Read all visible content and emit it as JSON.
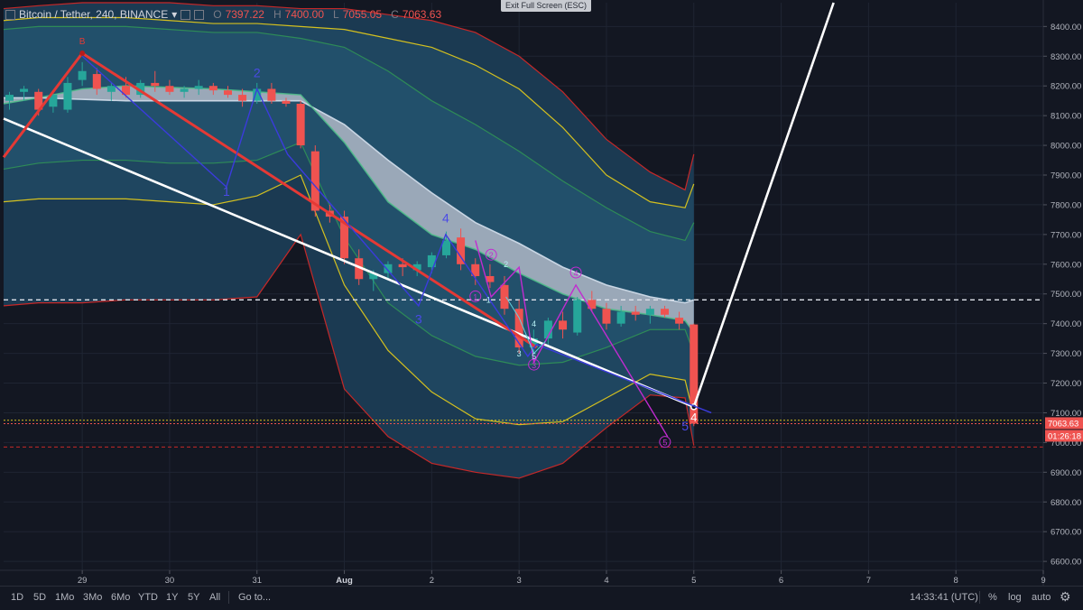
{
  "header": {
    "symbol": "Bitcoin / Tether, 240, BINANCE",
    "o_label": "O",
    "o": "7397.22",
    "h_label": "H",
    "h": "7400.00",
    "l_label": "L",
    "l": "7055.05",
    "c_label": "C",
    "c": "7063.63"
  },
  "fullscreen_hint": "Exit Full Screen (ESC)",
  "toolbar": {
    "ranges": [
      "1D",
      "5D",
      "1Mo",
      "3Mo",
      "6Mo",
      "YTD",
      "1Y",
      "5Y",
      "All"
    ],
    "goto": "Go to...",
    "clock": "14:33:41 (UTC)",
    "percent": "%",
    "log": "log",
    "auto": "auto"
  },
  "colors": {
    "background": "#131722",
    "up": "#26a69a",
    "down": "#ef5350",
    "bb_outer": "#c62828",
    "bb_mid": "#d4c01f",
    "bb_inner": "#2e8b57",
    "cloud": "#9aa8b8",
    "elliott_major": "#e53935",
    "elliott_minor": "#3b3bdc",
    "elliott_sub": "#c22bd1",
    "trend": "#ffffff"
  },
  "chart_data": {
    "type": "candlestick",
    "title": "Bitcoin / Tether, 240, BINANCE",
    "y_ticks": [
      6600,
      6700,
      6800,
      6900,
      7000,
      7100,
      7200,
      7300,
      7400,
      7500,
      7600,
      7700,
      7800,
      7900,
      8000,
      8100,
      8200,
      8300,
      8400
    ],
    "y_tick_labels": [
      "6600.00",
      "6700.00",
      "6800.00",
      "6900.00",
      "7000.00",
      "7100.00",
      "7200.00",
      "7300.00",
      "7400.00",
      "7500.00",
      "7600.00",
      "7700.00",
      "7800.00",
      "7900.00",
      "8000.00",
      "8100.00",
      "8200.00",
      "8300.00",
      "8400.00"
    ],
    "ylim": [
      6570,
      8480
    ],
    "x_tick_labels": [
      "29",
      "30",
      "31",
      "Aug",
      "2",
      "3",
      "4",
      "5",
      "6",
      "7",
      "8",
      "9"
    ],
    "x_ticks_day": [
      0,
      1,
      2,
      3,
      4,
      5,
      6,
      7,
      8,
      9,
      10,
      11
    ],
    "xlim_day": [
      -0.9,
      11.0
    ],
    "price_label": "7063.63",
    "countdown_label": "01:26:18",
    "last_price": 7063.63,
    "dashed_level_white": 7480,
    "dotted_level_yellow": 7075,
    "dashed_level_red": 6985,
    "candles_x_day_ohlc": [
      [
        -0.833,
        8150,
        8180,
        8120,
        8170
      ],
      [
        -0.667,
        8180,
        8200,
        8150,
        8190
      ],
      [
        -0.5,
        8180,
        8190,
        8100,
        8120
      ],
      [
        -0.333,
        8130,
        8180,
        8110,
        8170
      ],
      [
        -0.167,
        8120,
        8230,
        8110,
        8210
      ],
      [
        0.0,
        8220,
        8280,
        8200,
        8250
      ],
      [
        0.167,
        8240,
        8260,
        8170,
        8190
      ],
      [
        0.333,
        8180,
        8210,
        8150,
        8200
      ],
      [
        0.5,
        8200,
        8230,
        8160,
        8170
      ],
      [
        0.667,
        8170,
        8220,
        8160,
        8210
      ],
      [
        0.833,
        8210,
        8250,
        8180,
        8200
      ],
      [
        1.0,
        8200,
        8220,
        8170,
        8180
      ],
      [
        1.167,
        8180,
        8200,
        8160,
        8190
      ],
      [
        1.333,
        8190,
        8220,
        8170,
        8200
      ],
      [
        1.5,
        8200,
        8210,
        8170,
        8185
      ],
      [
        1.667,
        8185,
        8200,
        8160,
        8170
      ],
      [
        1.833,
        8170,
        8190,
        8130,
        8150
      ],
      [
        2.0,
        8150,
        8210,
        8140,
        8190
      ],
      [
        2.167,
        8190,
        8210,
        8140,
        8150
      ],
      [
        2.333,
        8150,
        8160,
        8130,
        8140
      ],
      [
        2.5,
        8140,
        8150,
        7990,
        8000
      ],
      [
        2.667,
        7980,
        8000,
        7760,
        7780
      ],
      [
        2.833,
        7780,
        7800,
        7740,
        7760
      ],
      [
        3.0,
        7760,
        7780,
        7600,
        7620
      ],
      [
        3.167,
        7620,
        7650,
        7530,
        7550
      ],
      [
        3.333,
        7550,
        7580,
        7510,
        7570
      ],
      [
        3.5,
        7570,
        7610,
        7550,
        7600
      ],
      [
        3.667,
        7600,
        7620,
        7560,
        7590
      ],
      [
        3.833,
        7580,
        7610,
        7560,
        7600
      ],
      [
        4.0,
        7590,
        7640,
        7570,
        7630
      ],
      [
        4.167,
        7630,
        7710,
        7620,
        7680
      ],
      [
        4.333,
        7690,
        7720,
        7580,
        7600
      ],
      [
        4.5,
        7600,
        7620,
        7530,
        7560
      ],
      [
        4.667,
        7560,
        7600,
        7520,
        7540
      ],
      [
        4.833,
        7530,
        7560,
        7430,
        7450
      ],
      [
        5.0,
        7450,
        7480,
        7300,
        7320
      ],
      [
        5.167,
        7320,
        7380,
        7300,
        7350
      ],
      [
        5.333,
        7350,
        7420,
        7330,
        7410
      ],
      [
        5.5,
        7410,
        7440,
        7350,
        7380
      ],
      [
        5.667,
        7370,
        7490,
        7360,
        7480
      ],
      [
        5.833,
        7480,
        7510,
        7440,
        7450
      ],
      [
        6.0,
        7450,
        7470,
        7380,
        7400
      ],
      [
        6.167,
        7400,
        7460,
        7390,
        7440
      ],
      [
        6.333,
        7440,
        7460,
        7410,
        7430
      ],
      [
        6.5,
        7430,
        7460,
        7400,
        7450
      ],
      [
        6.667,
        7450,
        7460,
        7420,
        7430
      ],
      [
        6.833,
        7420,
        7440,
        7380,
        7400
      ],
      [
        7.0,
        7397.22,
        7400,
        7055.05,
        7063.63
      ]
    ],
    "bands": {
      "x_day": [
        -0.9,
        -0.5,
        0.0,
        0.5,
        1.0,
        1.5,
        2.0,
        2.5,
        3.0,
        3.5,
        4.0,
        4.5,
        5.0,
        5.5,
        6.0,
        6.5,
        6.9,
        7.0
      ],
      "outer_upper": [
        8460,
        8470,
        8480,
        8480,
        8480,
        8470,
        8470,
        8460,
        8460,
        8440,
        8420,
        8380,
        8300,
        8180,
        8020,
        7910,
        7850,
        7970
      ],
      "outer_lower": [
        7460,
        7470,
        7470,
        7480,
        7480,
        7480,
        7490,
        7700,
        7180,
        7020,
        6930,
        6900,
        6880,
        6930,
        7050,
        7160,
        7150,
        6990
      ],
      "mid_upper": [
        8420,
        8430,
        8430,
        8430,
        8420,
        8410,
        8410,
        8400,
        8390,
        8360,
        8330,
        8270,
        8190,
        8060,
        7900,
        7810,
        7790,
        7870
      ],
      "mid_lower": [
        7810,
        7820,
        7820,
        7820,
        7810,
        7800,
        7830,
        7900,
        7530,
        7310,
        7170,
        7080,
        7060,
        7070,
        7150,
        7230,
        7210,
        7090
      ],
      "inner_upper": [
        8390,
        8400,
        8400,
        8400,
        8390,
        8380,
        8380,
        8360,
        8330,
        8250,
        8150,
        8070,
        7980,
        7880,
        7790,
        7710,
        7680,
        7740
      ],
      "inner_lower": [
        7920,
        7940,
        7950,
        7950,
        7940,
        7940,
        7950,
        8010,
        7690,
        7470,
        7360,
        7290,
        7260,
        7270,
        7320,
        7380,
        7380,
        7300
      ],
      "ma_slow": [
        8160,
        8160,
        8155,
        8150,
        8150,
        8150,
        8150,
        8150,
        8070,
        7950,
        7840,
        7740,
        7670,
        7590,
        7530,
        7490,
        7470,
        7480
      ],
      "ma_fast": [
        8140,
        8160,
        8190,
        8200,
        8195,
        8190,
        8180,
        8170,
        8010,
        7810,
        7700,
        7650,
        7570,
        7500,
        7450,
        7430,
        7410,
        7370
      ]
    },
    "elliott": {
      "major": {
        "x_day": [
          -0.9,
          0.0,
          5.2
        ],
        "y": [
          7960,
          8310,
          7320
        ],
        "labels": [
          {
            "t": "B",
            "x": 0.0,
            "y": 8340
          }
        ]
      },
      "minor": {
        "x_day": [
          0.0,
          1.65,
          2.0,
          2.35,
          3.85,
          4.16,
          5.1,
          5.2,
          7.2
        ],
        "y": [
          8300,
          7860,
          8190,
          7970,
          7460,
          7700,
          7290,
          7330,
          7100
        ],
        "labels": [
          {
            "t": "1",
            "x": 1.65,
            "y": 7830
          },
          {
            "t": "2",
            "x": 2.0,
            "y": 8230
          },
          {
            "t": "3",
            "x": 3.85,
            "y": 7400
          },
          {
            "t": "4",
            "x": 4.16,
            "y": 7740
          },
          {
            "t": "5",
            "x": 6.9,
            "y": 7040
          }
        ]
      },
      "sub": {
        "x_day": [
          4.5,
          4.68,
          5.0,
          5.17,
          5.65,
          6.7
        ],
        "y": [
          7680,
          7490,
          7590,
          7270,
          7530,
          7020
        ],
        "labels": [
          {
            "t": "1",
            "x": 4.5,
            "y": 7480
          },
          {
            "t": "2",
            "x": 4.68,
            "y": 7620
          },
          {
            "t": "3",
            "x": 5.17,
            "y": 7250
          },
          {
            "t": "4",
            "x": 5.65,
            "y": 7560
          },
          {
            "t": "5",
            "x": 6.67,
            "y": 6990
          }
        ]
      },
      "micro": {
        "x_day": [
          4.85,
          5.0,
          5.17,
          5.3
        ],
        "y": [
          7490,
          7420,
          7300,
          7340
        ],
        "labels": [
          {
            "t": "1",
            "x": 4.65,
            "y": 7470
          },
          {
            "t": "2",
            "x": 4.85,
            "y": 7590
          },
          {
            "t": "3",
            "x": 5.0,
            "y": 7290
          },
          {
            "t": "4",
            "x": 5.17,
            "y": 7390
          },
          {
            "t": "5",
            "x": 5.17,
            "y": 7280
          }
        ]
      }
    },
    "trend_lines": {
      "down": {
        "x_day": [
          -0.9,
          7.0
        ],
        "y": [
          8090,
          7120
        ]
      },
      "up": {
        "x_day": [
          7.0,
          8.6
        ],
        "y": [
          7120,
          8480
        ]
      },
      "end_label": "4"
    }
  }
}
